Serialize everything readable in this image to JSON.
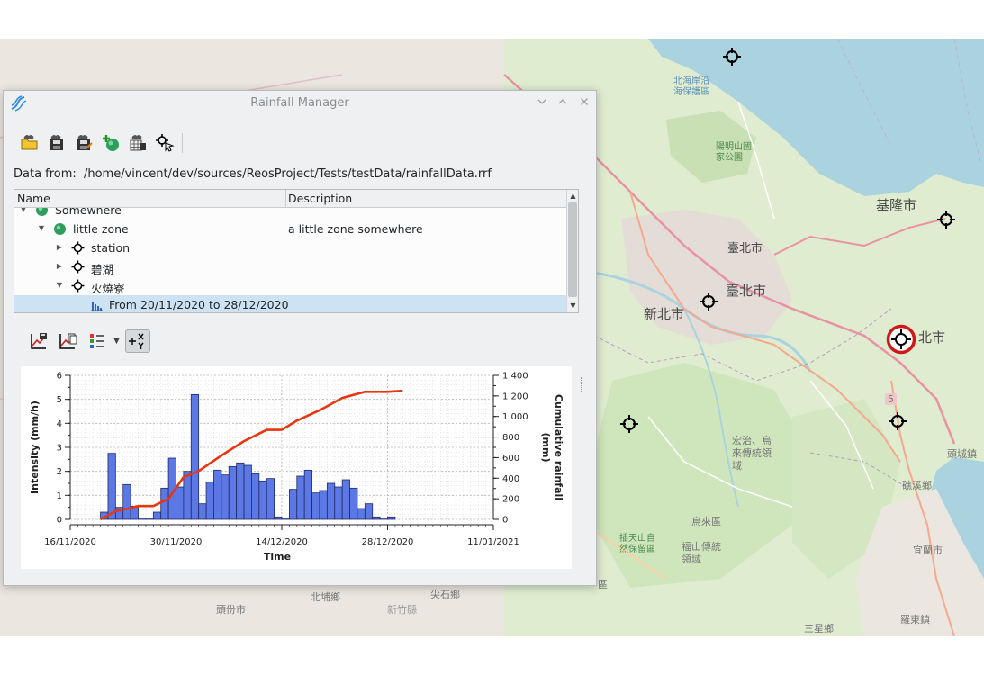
{
  "window": {
    "title": "Rainfall Manager",
    "data_from_label": "Data from:",
    "data_from_path": "/home/vincent/dev/sources/ReosProject/Tests/testData/rainfallData.rrf"
  },
  "toolbar1": [
    {
      "name": "open-file-icon"
    },
    {
      "name": "save-icon"
    },
    {
      "name": "save-as-icon"
    },
    {
      "name": "add-zone-icon"
    },
    {
      "name": "import-station-icon"
    },
    {
      "name": "select-on-map-icon"
    }
  ],
  "tree": {
    "columns": {
      "name": "Name",
      "description": "Description"
    },
    "rows": [
      {
        "label": "Somewhere",
        "desc": ""
      },
      {
        "label": "little zone",
        "desc": "a little zone somewhere"
      },
      {
        "label": "station",
        "desc": ""
      },
      {
        "label": "碧湖",
        "desc": ""
      },
      {
        "label": "火燒寮",
        "desc": ""
      },
      {
        "label": "From 20/11/2020 to 28/12/2020",
        "desc": ""
      }
    ]
  },
  "toolbar2": [
    {
      "name": "export-chart-icon"
    },
    {
      "name": "copy-chart-icon"
    },
    {
      "name": "legend-icon"
    },
    {
      "name": "cursor-coordinates-icon"
    }
  ],
  "chart_data": {
    "type": "bar",
    "xlabel": "Time",
    "ylabel": "Intensity (mm/h)",
    "y2label": "Cumulative rainfall (mm)",
    "ylim": [
      0,
      6
    ],
    "y2lim": [
      0,
      1400
    ],
    "x_ticks": [
      "16/11/2020",
      "30/11/2020",
      "14/12/2020",
      "28/12/2020",
      "11/01/2021"
    ],
    "y_ticks": [
      "0",
      "1",
      "2",
      "3",
      "4",
      "5",
      "6"
    ],
    "y2_ticks": [
      "0",
      "200",
      "400",
      "600",
      "800",
      "1 000",
      "1 200",
      "1 400"
    ],
    "grid": true,
    "bar_color": "#5b78e5",
    "line_color": "#e8360f",
    "bars_start": "20/11/2020",
    "bar_days": 1,
    "intensity": [
      0.3,
      2.75,
      0.5,
      1.45,
      0.55,
      0.05,
      0.05,
      0.3,
      1.3,
      2.55,
      1.35,
      2.0,
      5.2,
      0.65,
      1.55,
      2.05,
      1.85,
      2.2,
      2.35,
      2.25,
      1.9,
      1.6,
      1.7,
      0.1,
      0.05,
      1.25,
      1.8,
      2.05,
      1.1,
      1.2,
      1.5,
      1.35,
      1.65,
      1.3,
      0.45,
      0.65,
      0.1,
      0.05,
      0.1
    ],
    "cumulative_dates": [
      "20/11/2020",
      "22/11/2020",
      "24/11/2020",
      "25/11/2020",
      "27/11/2020",
      "29/11/2020",
      "1/12/2020",
      "3/12/2020",
      "6/12/2020",
      "9/12/2020",
      "12/12/2020",
      "14/12/2020",
      "16/12/2020",
      "19/12/2020",
      "22/12/2020",
      "25/12/2020",
      "28/12/2020",
      "30/12/2020"
    ],
    "cumulative": [
      0,
      80,
      110,
      130,
      130,
      200,
      410,
      470,
      620,
      760,
      870,
      870,
      960,
      1060,
      1180,
      1240,
      1240,
      1250
    ]
  },
  "map": {
    "labels": [
      {
        "text": "北海岸沿\n海保護區",
        "kind": "sea"
      },
      {
        "text": "陽明山國\n家公園",
        "kind": "park"
      },
      {
        "text": "基隆市",
        "kind": "city"
      },
      {
        "text": "臺北市",
        "kind": "city"
      },
      {
        "text": "臺北市",
        "kind": "city"
      },
      {
        "text": "新北市",
        "kind": "city"
      },
      {
        "text": "北市",
        "kind": "city"
      },
      {
        "text": "5",
        "kind": "small"
      },
      {
        "text": "宏治、烏\n來傳統領\n域",
        "kind": "small"
      },
      {
        "text": "烏來區",
        "kind": "small"
      },
      {
        "text": "插天山自\n然保留區",
        "kind": "park"
      },
      {
        "text": "福山傳統\n領域",
        "kind": "small"
      },
      {
        "text": "礁溪鄉",
        "kind": "small"
      },
      {
        "text": "頭城鎮",
        "kind": "small"
      },
      {
        "text": "宜蘭市",
        "kind": "small"
      },
      {
        "text": "北埔鄉",
        "kind": "small"
      },
      {
        "text": "尖石鄉",
        "kind": "small"
      },
      {
        "text": "頭份市",
        "kind": "small"
      },
      {
        "text": "新竹縣",
        "kind": "small"
      },
      {
        "text": "三星鄉",
        "kind": "small"
      },
      {
        "text": "羅東鎮",
        "kind": "small"
      },
      {
        "text": "區",
        "kind": "small"
      }
    ]
  }
}
